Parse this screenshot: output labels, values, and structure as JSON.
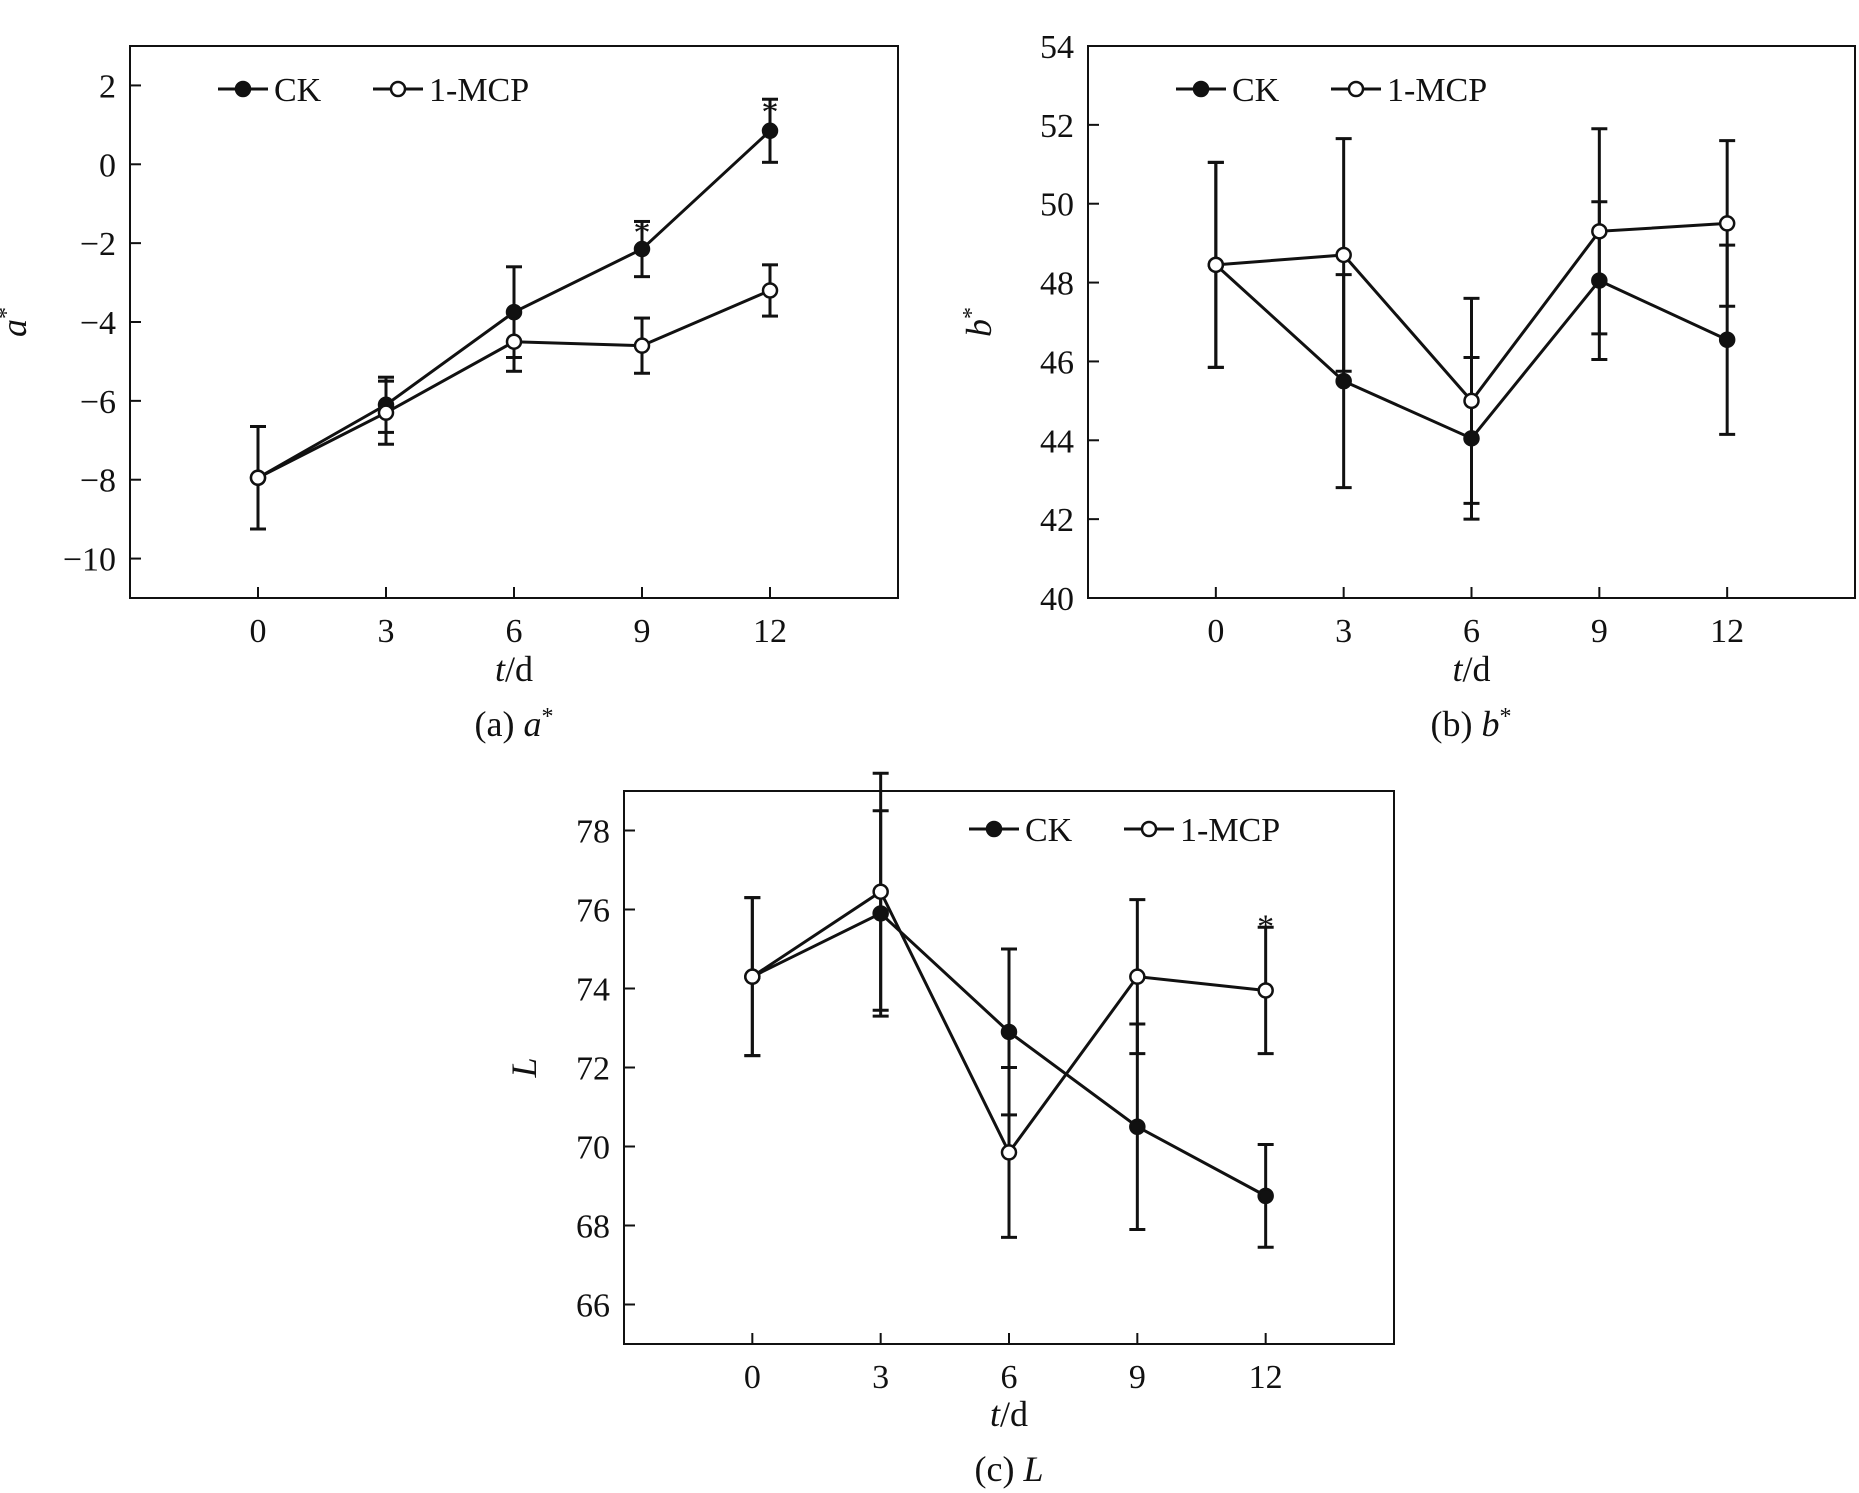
{
  "figure": {
    "legend": {
      "ck": "CK",
      "mcp": "1-MCP"
    }
  },
  "chart_data": [
    {
      "id": "a",
      "type": "line",
      "caption_prefix": "(a) ",
      "caption_var": "a",
      "caption_sup": "*",
      "ylabel_var": "a",
      "ylabel_sup": "*",
      "xlabel_var": "t",
      "xlabel_unit": "/d",
      "x": [
        0,
        3,
        6,
        9,
        12
      ],
      "xlim": [
        -3,
        15
      ],
      "ylim": [
        -11,
        3
      ],
      "yticks": [
        2,
        0,
        -2,
        -4,
        -6,
        -8,
        -10
      ],
      "ytick_labels": [
        "2",
        "0",
        "−2",
        "−4",
        "−6",
        "−8",
        "−10"
      ],
      "legend_position": "top-left",
      "series": [
        {
          "name": "CK",
          "marker": "filled",
          "values": [
            -7.95,
            -6.1,
            -3.75,
            -2.15,
            0.85
          ],
          "errors": [
            1.3,
            0.7,
            1.15,
            0.7,
            0.8
          ]
        },
        {
          "name": "1-MCP",
          "marker": "open",
          "values": [
            -7.95,
            -6.3,
            -4.5,
            -4.6,
            -3.2
          ],
          "errors": [
            1.3,
            0.8,
            0.75,
            0.7,
            0.65
          ]
        }
      ],
      "annotations": [
        {
          "x": 9,
          "y": -1.4,
          "text": "*"
        },
        {
          "x": 12,
          "y": 1.65,
          "text": "*"
        }
      ]
    },
    {
      "id": "b",
      "type": "line",
      "caption_prefix": "(b) ",
      "caption_var": "b",
      "caption_sup": "*",
      "ylabel_var": "b",
      "ylabel_sup": "*",
      "xlabel_var": "t",
      "xlabel_unit": "/d",
      "x": [
        0,
        3,
        6,
        9,
        12
      ],
      "xlim": [
        -3,
        15
      ],
      "ylim": [
        40,
        54
      ],
      "yticks": [
        54,
        52,
        50,
        48,
        46,
        44,
        42,
        40
      ],
      "ytick_labels": [
        "54",
        "52",
        "50",
        "48",
        "46",
        "44",
        "42",
        "40"
      ],
      "legend_position": "top-left",
      "series": [
        {
          "name": "CK",
          "marker": "filled",
          "values": [
            48.45,
            45.5,
            44.05,
            48.05,
            46.55
          ],
          "errors": [
            2.6,
            2.7,
            2.05,
            2.0,
            2.4
          ]
        },
        {
          "name": "1-MCP",
          "marker": "open",
          "values": [
            48.45,
            48.7,
            45.0,
            49.3,
            49.5
          ],
          "errors": [
            2.6,
            2.95,
            2.6,
            2.6,
            2.1
          ]
        }
      ],
      "annotations": []
    },
    {
      "id": "c",
      "type": "line",
      "caption_prefix": "(c) ",
      "caption_var": "L",
      "caption_sup": "",
      "ylabel_var": "L",
      "ylabel_sup": "",
      "xlabel_var": "t",
      "xlabel_unit": "/d",
      "x": [
        0,
        3,
        6,
        9,
        12
      ],
      "xlim": [
        -3,
        15
      ],
      "ylim": [
        65,
        79
      ],
      "yticks": [
        78,
        76,
        74,
        72,
        70,
        68,
        66
      ],
      "ytick_labels": [
        "78",
        "76",
        "74",
        "72",
        "70",
        "68",
        "66"
      ],
      "legend_position": "top-right",
      "series": [
        {
          "name": "CK",
          "marker": "filled",
          "values": [
            74.3,
            75.9,
            72.9,
            70.5,
            68.75
          ],
          "errors": [
            2.0,
            2.6,
            2.1,
            2.6,
            1.3
          ]
        },
        {
          "name": "1-MCP",
          "marker": "open",
          "values": [
            74.3,
            76.45,
            69.85,
            74.3,
            73.95
          ],
          "errors": [
            2.0,
            3.0,
            2.15,
            1.95,
            1.6
          ]
        }
      ],
      "annotations": [
        {
          "x": 12,
          "y": 75.9,
          "text": "*"
        }
      ]
    }
  ]
}
